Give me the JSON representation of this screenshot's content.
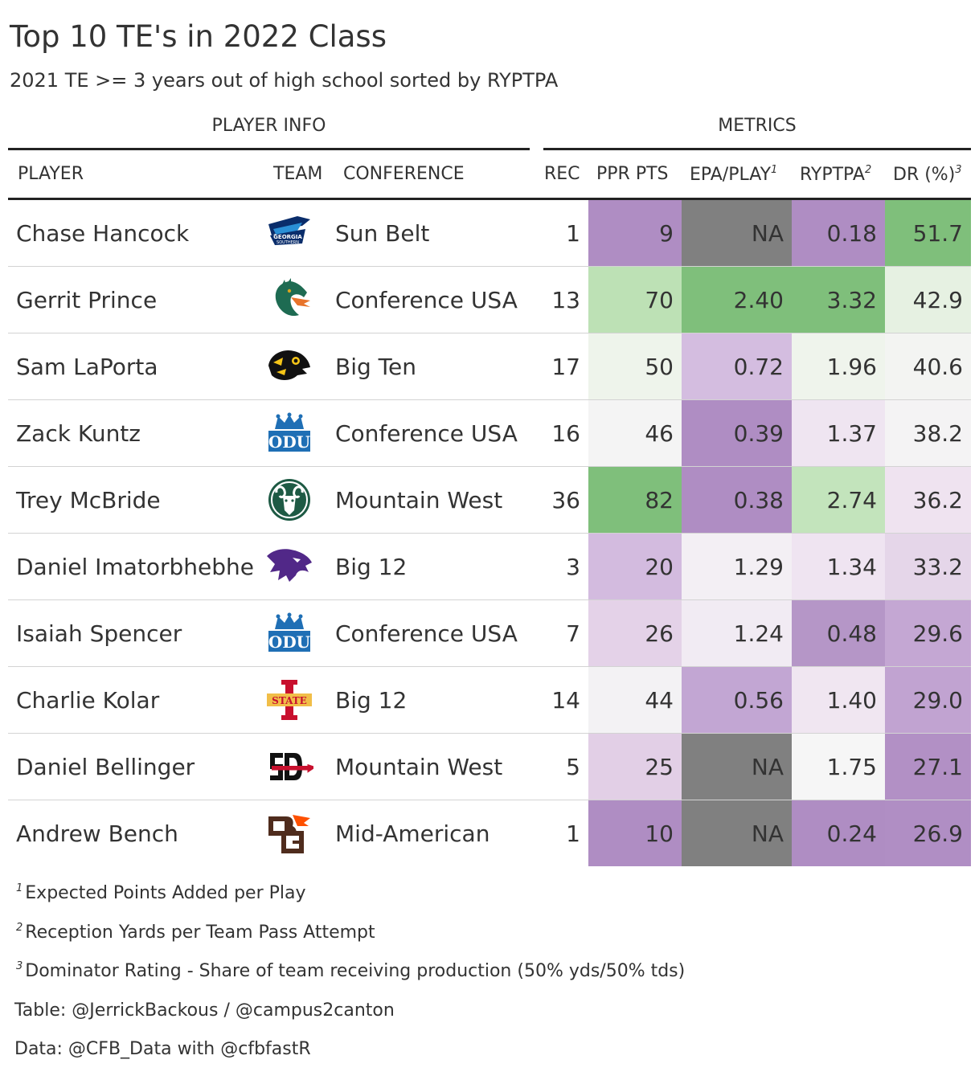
{
  "title": "Top 10 TE's in 2022 Class",
  "subtitle": "2021 TE >= 3 years out of high school sorted by RYPTPA",
  "spanners": {
    "player_info": "PLAYER INFO",
    "metrics": "METRICS"
  },
  "columns": {
    "player": "PLAYER",
    "team": "TEAM",
    "conference": "CONFERENCE",
    "rec": "REC",
    "ppr": "PPR PTS",
    "epa": "EPA/PLAY",
    "epa_mark": "1",
    "ryptpa": "RYPTPA",
    "ryptpa_mark": "2",
    "dr": "DR (%)",
    "dr_mark": "3"
  },
  "rows": [
    {
      "player": "Chase Hancock",
      "team_logo": "georgia-southern-logo-icon",
      "conference": "Sun Belt",
      "rec": "1",
      "ppr": "9",
      "epa": "NA",
      "ryptpa": "0.18",
      "dr": "51.7",
      "colors": {
        "ppr": "#af8dc3",
        "epa": "#808080",
        "ryptpa": "#af8dc3",
        "dr": "#7fbf7b"
      }
    },
    {
      "player": "Gerrit Prince",
      "team_logo": "uab-dragon-logo-icon",
      "conference": "Conference USA",
      "rec": "13",
      "ppr": "70",
      "epa": "2.40",
      "ryptpa": "3.32",
      "dr": "42.9",
      "colors": {
        "ppr": "#bde1b5",
        "epa": "#7fbf7b",
        "ryptpa": "#7fbf7b",
        "dr": "#e6f1e2"
      }
    },
    {
      "player": "Sam LaPorta",
      "team_logo": "iowa-hawkeye-logo-icon",
      "conference": "Big Ten",
      "rec": "17",
      "ppr": "50",
      "epa": "0.72",
      "ryptpa": "1.96",
      "dr": "40.6",
      "colors": {
        "ppr": "#eef4eb",
        "epa": "#d4bde0",
        "ryptpa": "#eff4ec",
        "dr": "#f3f4f2"
      }
    },
    {
      "player": "Zack Kuntz",
      "team_logo": "odu-crown-logo-icon",
      "conference": "Conference USA",
      "rec": "16",
      "ppr": "46",
      "epa": "0.39",
      "ryptpa": "1.37",
      "dr": "38.2",
      "colors": {
        "ppr": "#f4f4f4",
        "epa": "#af8dc3",
        "ryptpa": "#efe5f1",
        "dr": "#f4f3f4"
      }
    },
    {
      "player": "Trey McBride",
      "team_logo": "colorado-state-ram-logo-icon",
      "conference": "Mountain West",
      "rec": "36",
      "ppr": "82",
      "epa": "0.38",
      "ryptpa": "2.74",
      "dr": "36.2",
      "colors": {
        "ppr": "#7fbf7b",
        "epa": "#af8dc3",
        "ryptpa": "#c3e4bc",
        "dr": "#efe3f0"
      }
    },
    {
      "player": "Daniel Imatorbhebhe",
      "team_logo": "kansas-state-wildcat-logo-icon",
      "conference": "Big 12",
      "rec": "3",
      "ppr": "20",
      "epa": "1.29",
      "ryptpa": "1.34",
      "dr": "33.2",
      "colors": {
        "ppr": "#d3bbdf",
        "epa": "#f3eff4",
        "ryptpa": "#efe4f1",
        "dr": "#e5d6e9"
      }
    },
    {
      "player": "Isaiah Spencer",
      "team_logo": "odu-crown-logo-icon",
      "conference": "Conference USA",
      "rec": "7",
      "ppr": "26",
      "epa": "1.24",
      "ryptpa": "0.48",
      "dr": "29.6",
      "colors": {
        "ppr": "#e4d2e8",
        "epa": "#f1ebf3",
        "ryptpa": "#b596c7",
        "dr": "#c4a7d3"
      }
    },
    {
      "player": "Charlie Kolar",
      "team_logo": "iowa-state-logo-icon",
      "conference": "Big 12",
      "rec": "14",
      "ppr": "44",
      "epa": "0.56",
      "ryptpa": "1.40",
      "dr": "29.0",
      "colors": {
        "ppr": "#f3f2f4",
        "epa": "#c2a6d3",
        "ryptpa": "#f0e6f1",
        "dr": "#c1a3d1"
      }
    },
    {
      "player": "Daniel Bellinger",
      "team_logo": "san-diego-state-logo-icon",
      "conference": "Mountain West",
      "rec": "5",
      "ppr": "25",
      "epa": "NA",
      "ryptpa": "1.75",
      "dr": "27.1",
      "colors": {
        "ppr": "#e2cfe6",
        "epa": "#808080",
        "ryptpa": "#f6f6f6",
        "dr": "#b290c5"
      }
    },
    {
      "player": "Andrew Bench",
      "team_logo": "bowling-green-logo-icon",
      "conference": "Mid-American",
      "rec": "1",
      "ppr": "10",
      "epa": "NA",
      "ryptpa": "0.24",
      "dr": "26.9",
      "colors": {
        "ppr": "#af8dc3",
        "epa": "#808080",
        "ryptpa": "#af8dc3",
        "dr": "#b08ec4"
      }
    }
  ],
  "footnotes": [
    {
      "mark": "1",
      "text": "Expected Points Added per Play"
    },
    {
      "mark": "2",
      "text": "Reception Yards per Team Pass Attempt"
    },
    {
      "mark": "3",
      "text": "Dominator Rating - Share of team receiving production (50% yds/50% tds)"
    }
  ],
  "source_notes": [
    "Table: @JerrickBackous / @campus2canton",
    "Data: @CFB_Data with @cfbfastR"
  ]
}
